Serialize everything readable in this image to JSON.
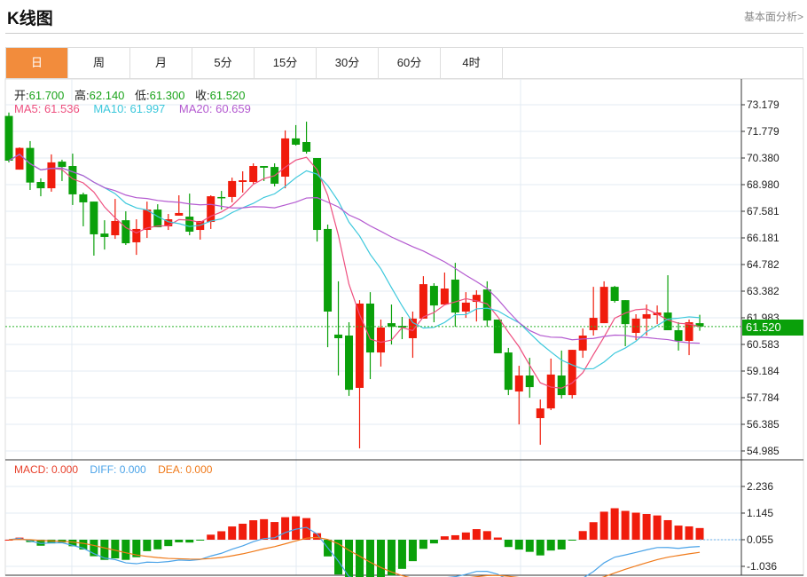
{
  "header": {
    "title": "K线图",
    "link": "基本面分析>"
  },
  "tabs": [
    {
      "label": "日",
      "active": true
    },
    {
      "label": "周"
    },
    {
      "label": "月"
    },
    {
      "label": "5分"
    },
    {
      "label": "15分"
    },
    {
      "label": "30分"
    },
    {
      "label": "60分"
    },
    {
      "label": "4时"
    }
  ],
  "quote": {
    "open_label": "开:",
    "open": "61.700",
    "high_label": "高:",
    "high": "62.140",
    "low_label": "低:",
    "low": "61.300",
    "close_label": "收:",
    "close": "61.520"
  },
  "ma": {
    "ma5": "MA5: 61.536",
    "ma10": "MA10: 61.997",
    "ma20": "MA20: 60.659"
  },
  "macd": {
    "macd": "MACD: 0.000",
    "diff": "DIFF: 0.000",
    "dea": "DEA: 0.000"
  },
  "current_price": "61.520",
  "colors": {
    "up": "#f01c0c",
    "down": "#0aa00a",
    "ma5": "#ee4f7f",
    "ma10": "#3cc8dc",
    "ma20": "#b45ad0",
    "diff": "#4aa3e8",
    "dea": "#f07a1a",
    "active_tab": "#f28c3c"
  },
  "chart_data": {
    "type": "candlestick",
    "price_axis": {
      "ticks": [
        "73.179",
        "71.779",
        "70.380",
        "68.980",
        "67.581",
        "66.181",
        "64.782",
        "63.382",
        "61.983",
        "60.583",
        "59.184",
        "57.784",
        "56.385",
        "54.985"
      ],
      "range": [
        54.985,
        73.179
      ]
    },
    "macd_axis": {
      "ticks": [
        "2.236",
        "1.145",
        "0.055",
        "-1.036"
      ],
      "range": [
        -1.036,
        2.236
      ]
    },
    "candles_ohlc": [
      [
        72.59,
        72.77,
        70.15,
        70.24
      ],
      [
        69.77,
        70.94,
        69.77,
        70.91
      ],
      [
        70.91,
        71.27,
        68.7,
        69.09
      ],
      [
        69.12,
        69.31,
        68.37,
        68.79
      ],
      [
        68.79,
        70.57,
        68.61,
        70.15
      ],
      [
        70.19,
        70.29,
        69.17,
        69.91
      ],
      [
        69.96,
        70.61,
        67.91,
        68.47
      ],
      [
        68.47,
        68.56,
        66.79,
        68.05
      ],
      [
        68.09,
        68.09,
        65.25,
        66.37
      ],
      [
        66.41,
        67.11,
        65.57,
        66.23
      ],
      [
        66.32,
        68.23,
        66.13,
        67.07
      ],
      [
        67.11,
        67.58,
        65.81,
        65.9
      ],
      [
        65.95,
        67.16,
        65.29,
        66.65
      ],
      [
        66.6,
        68.09,
        66.18,
        67.67
      ],
      [
        67.67,
        67.95,
        66.74,
        66.74
      ],
      [
        66.79,
        67.44,
        66.6,
        67.16
      ],
      [
        67.35,
        68.42,
        67.35,
        67.49
      ],
      [
        67.3,
        68.51,
        66.32,
        66.51
      ],
      [
        66.6,
        67.07,
        66.09,
        67.07
      ],
      [
        67.02,
        68.42,
        66.65,
        68.37
      ],
      [
        68.33,
        68.65,
        67.67,
        68.28
      ],
      [
        68.33,
        69.35,
        68.05,
        69.17
      ],
      [
        69.12,
        69.68,
        68.56,
        69.21
      ],
      [
        69.12,
        70.1,
        69.03,
        69.96
      ],
      [
        69.96,
        69.96,
        69.17,
        69.87
      ],
      [
        69.91,
        70.1,
        68.89,
        69.03
      ],
      [
        69.4,
        71.83,
        68.79,
        71.41
      ],
      [
        71.41,
        72.11,
        71.03,
        71.08
      ],
      [
        71.22,
        72.29,
        70.61,
        70.71
      ],
      [
        70.38,
        70.38,
        65.99,
        66.6
      ],
      [
        66.65,
        66.88,
        60.44,
        62.31
      ],
      [
        61.1,
        63.9,
        58.95,
        60.91
      ],
      [
        61.05,
        61.75,
        57.88,
        58.2
      ],
      [
        58.3,
        62.91,
        55.12,
        62.73
      ],
      [
        62.73,
        63.33,
        58.76,
        60.16
      ],
      [
        60.16,
        61.89,
        59.42,
        61.47
      ],
      [
        61.7,
        62.68,
        60.58,
        61.51
      ],
      [
        61.56,
        62.03,
        60.86,
        61.47
      ],
      [
        60.91,
        62.31,
        59.88,
        61.94
      ],
      [
        61.94,
        64.17,
        61.94,
        63.75
      ],
      [
        63.66,
        63.8,
        61.75,
        62.63
      ],
      [
        62.68,
        64.36,
        62.68,
        63.52
      ],
      [
        63.99,
        64.87,
        61.51,
        62.26
      ],
      [
        62.31,
        63.33,
        61.98,
        62.78
      ],
      [
        62.82,
        63.43,
        61.79,
        63.19
      ],
      [
        63.47,
        63.9,
        61.51,
        61.84
      ],
      [
        61.89,
        61.89,
        60.12,
        60.12
      ],
      [
        60.16,
        60.4,
        57.92,
        58.2
      ],
      [
        58.11,
        59.46,
        56.38,
        58.95
      ],
      [
        58.95,
        59.88,
        57.78,
        58.34
      ],
      [
        56.71,
        57.69,
        55.31,
        57.22
      ],
      [
        57.22,
        59.84,
        57.13,
        59.0
      ],
      [
        58.95,
        60.26,
        57.74,
        57.92
      ],
      [
        57.92,
        60.3,
        57.74,
        60.3
      ],
      [
        60.26,
        61.42,
        59.88,
        61.05
      ],
      [
        61.33,
        63.61,
        61.05,
        61.98
      ],
      [
        61.7,
        63.9,
        61.7,
        63.61
      ],
      [
        63.61,
        63.66,
        62.78,
        62.87
      ],
      [
        62.91,
        62.91,
        60.49,
        61.65
      ],
      [
        61.19,
        62.17,
        60.81,
        61.94
      ],
      [
        61.94,
        62.68,
        61.05,
        62.17
      ],
      [
        62.12,
        62.63,
        61.65,
        62.26
      ],
      [
        62.26,
        64.22,
        61.33,
        61.33
      ],
      [
        61.33,
        61.75,
        60.26,
        60.77
      ],
      [
        60.77,
        61.89,
        60.02,
        61.75
      ],
      [
        61.7,
        62.14,
        61.3,
        61.52
      ]
    ],
    "indicators": [
      "MA5",
      "MA10",
      "MA20",
      "MACD(12,26,9)"
    ]
  }
}
